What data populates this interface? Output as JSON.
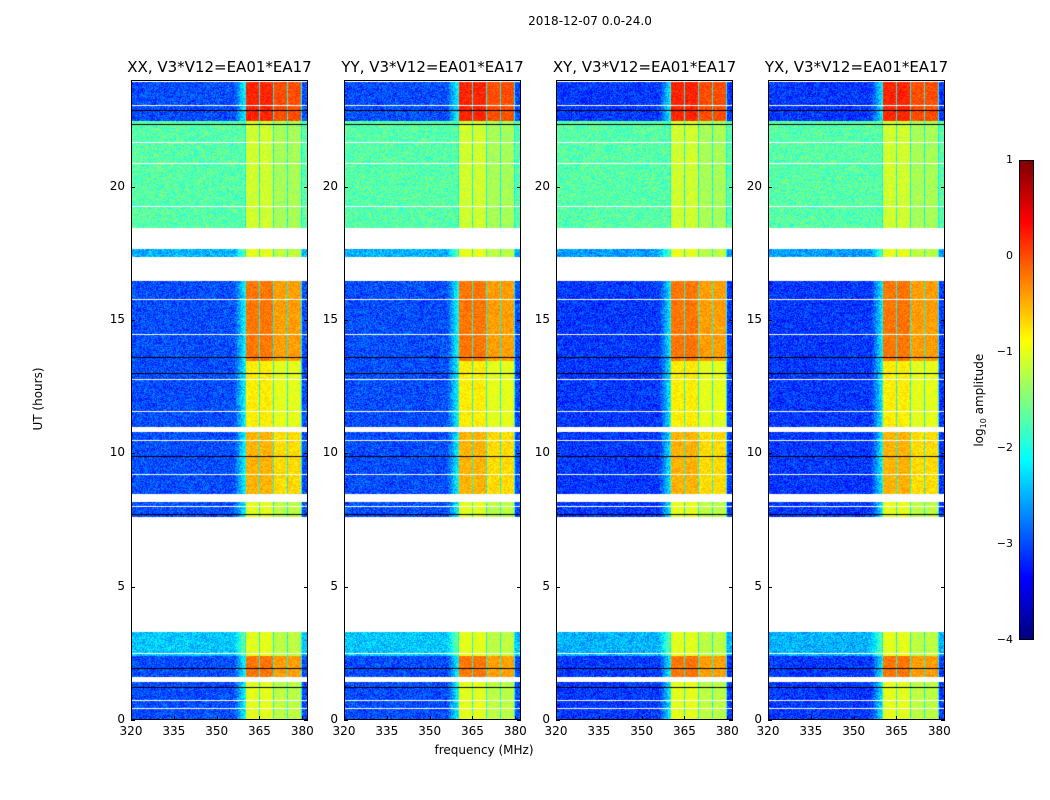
{
  "chart_data": {
    "type": "heatmap",
    "title": "2018-12-07 0.0-24.0",
    "xlabel": "frequency (MHz)",
    "ylabel": "UT (hours)",
    "xlim": [
      320,
      382
    ],
    "ylim": [
      0,
      24
    ],
    "xticks": [
      320,
      335,
      350,
      365,
      380
    ],
    "yticks": [
      0,
      5,
      10,
      15,
      20
    ],
    "panels": [
      {
        "title": "XX, V3*V12=EA01*EA17",
        "polarization": "XX"
      },
      {
        "title": "YY, V3*V12=EA01*EA17",
        "polarization": "YY"
      },
      {
        "title": "XY, V3*V12=EA01*EA17",
        "polarization": "XY"
      },
      {
        "title": "YX, V3*V12=EA01*EA17",
        "polarization": "YX"
      }
    ],
    "colorbar": {
      "label_main": "log",
      "label_sub": "10",
      "label_rest": " amplitude",
      "colormap": "jet",
      "range": [
        -4,
        1
      ],
      "ticks": [
        "1",
        "0",
        "−1",
        "−2",
        "−3",
        "−4"
      ]
    },
    "signal_band_MHz": [
      360,
      380
    ],
    "time_segments_hours": [
      {
        "start": 0.0,
        "end": 1.4,
        "background_log10": -3.0,
        "band_log10": -1.0
      },
      {
        "start": 1.6,
        "end": 2.4,
        "background_log10": -3.0,
        "band_log10": -0.2
      },
      {
        "start": 2.4,
        "end": 3.3,
        "background_log10": -2.4,
        "band_log10": -1.0
      },
      {
        "start": 7.6,
        "end": 8.2,
        "background_log10": -3.0,
        "band_log10": -1.0
      },
      {
        "start": 8.5,
        "end": 10.8,
        "background_log10": -3.0,
        "band_log10": -0.5
      },
      {
        "start": 11.0,
        "end": 13.5,
        "background_log10": -3.0,
        "band_log10": -0.8
      },
      {
        "start": 13.5,
        "end": 16.5,
        "background_log10": -3.0,
        "band_log10": -0.2
      },
      {
        "start": 17.4,
        "end": 17.7,
        "background_log10": -2.5,
        "band_log10": -1.0
      },
      {
        "start": 18.5,
        "end": 22.5,
        "background_log10": -1.7,
        "band_log10": -1.1
      },
      {
        "start": 22.5,
        "end": 24.0,
        "background_log10": -3.0,
        "band_log10": 0.2
      }
    ]
  }
}
